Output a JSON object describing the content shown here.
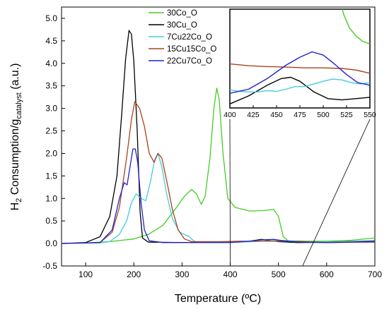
{
  "chart_data": [
    {
      "type": "line",
      "xlabel": "Temperature (ºC)",
      "ylabel_main": "H",
      "ylabel_sub": "2",
      "ylabel_mid": " Consumption/g",
      "ylabel_sub2": "catalyst",
      "ylabel_end": " (a.u.)",
      "xlim": [
        50,
        700
      ],
      "ylim": [
        -0.5,
        5.25
      ],
      "xticks": [
        100,
        200,
        300,
        400,
        500,
        600,
        700
      ],
      "yticks": [
        -0.5,
        0.0,
        0.5,
        1.0,
        1.5,
        2.0,
        2.5,
        3.0,
        3.5,
        4.0,
        4.5,
        5.0
      ],
      "ytick_labels": [
        "-0.5",
        "0.0",
        "0.5",
        "1.0",
        "1.5",
        "2.0",
        "2.5",
        "3.0",
        "3.5",
        "4.0",
        "4.5",
        "5.0"
      ],
      "legend_position": "top-right",
      "series": [
        {
          "name": "30Co_O",
          "color": "#44cc22",
          "points": [
            [
              50,
              0
            ],
            [
              100,
              0.01
            ],
            [
              150,
              0.04
            ],
            [
              200,
              0.1
            ],
            [
              230,
              0.2
            ],
            [
              260,
              0.4
            ],
            [
              285,
              0.75
            ],
            [
              305,
              1.05
            ],
            [
              320,
              1.2
            ],
            [
              330,
              1.1
            ],
            [
              340,
              0.87
            ],
            [
              348,
              1.05
            ],
            [
              358,
              1.9
            ],
            [
              366,
              3.0
            ],
            [
              372,
              3.45
            ],
            [
              377,
              3.2
            ],
            [
              385,
              2.0
            ],
            [
              395,
              1.0
            ],
            [
              410,
              0.8
            ],
            [
              440,
              0.72
            ],
            [
              470,
              0.73
            ],
            [
              490,
              0.76
            ],
            [
              500,
              0.6
            ],
            [
              510,
              0.15
            ],
            [
              520,
              0.06
            ],
            [
              560,
              0.05
            ],
            [
              600,
              0.05
            ],
            [
              650,
              0.07
            ],
            [
              700,
              0.12
            ]
          ]
        },
        {
          "name": "30Cu_O",
          "color": "#000000",
          "points": [
            [
              50,
              0
            ],
            [
              100,
              0.02
            ],
            [
              130,
              0.15
            ],
            [
              150,
              0.6
            ],
            [
              165,
              1.5
            ],
            [
              175,
              2.9
            ],
            [
              183,
              4.1
            ],
            [
              190,
              4.73
            ],
            [
              195,
              4.65
            ],
            [
              200,
              4.05
            ],
            [
              207,
              2.5
            ],
            [
              213,
              0.7
            ],
            [
              218,
              0.12
            ],
            [
              230,
              0.03
            ],
            [
              300,
              0.02
            ],
            [
              380,
              0.02
            ],
            [
              440,
              0.05
            ],
            [
              465,
              0.09
            ],
            [
              500,
              0.04
            ],
            [
              540,
              0.02
            ],
            [
              600,
              0.03
            ],
            [
              700,
              0.06
            ]
          ]
        },
        {
          "name": "7Cu22Co_O",
          "color": "#44ccdd",
          "points": [
            [
              50,
              0
            ],
            [
              130,
              0.01
            ],
            [
              150,
              0.04
            ],
            [
              170,
              0.2
            ],
            [
              185,
              0.5
            ],
            [
              195,
              0.9
            ],
            [
              205,
              1.1
            ],
            [
              215,
              1.0
            ],
            [
              225,
              0.95
            ],
            [
              235,
              1.4
            ],
            [
              243,
              1.85
            ],
            [
              250,
              2.0
            ],
            [
              258,
              1.7
            ],
            [
              268,
              1.1
            ],
            [
              280,
              0.55
            ],
            [
              295,
              0.25
            ],
            [
              315,
              0.15
            ],
            [
              325,
              0.05
            ],
            [
              340,
              0.02
            ],
            [
              420,
              0.03
            ],
            [
              450,
              0.04
            ],
            [
              480,
              0.06
            ],
            [
              510,
              0.07
            ],
            [
              540,
              0.04
            ],
            [
              600,
              0.03
            ],
            [
              700,
              0.05
            ]
          ]
        },
        {
          "name": "15Cu15Co_O",
          "color": "#a8431b",
          "points": [
            [
              50,
              0
            ],
            [
              130,
              0.02
            ],
            [
              155,
              0.25
            ],
            [
              170,
              0.8
            ],
            [
              185,
              1.9
            ],
            [
              195,
              2.75
            ],
            [
              202,
              3.15
            ],
            [
              212,
              3.0
            ],
            [
              222,
              2.6
            ],
            [
              232,
              2.0
            ],
            [
              242,
              1.8
            ],
            [
              250,
              2.0
            ],
            [
              258,
              1.9
            ],
            [
              268,
              1.4
            ],
            [
              280,
              0.75
            ],
            [
              292,
              0.3
            ],
            [
              305,
              0.1
            ],
            [
              320,
              0.04
            ],
            [
              380,
              0.04
            ],
            [
              420,
              0.05
            ],
            [
              450,
              0.05
            ],
            [
              490,
              0.05
            ],
            [
              550,
              0.04
            ],
            [
              600,
              0.02
            ],
            [
              700,
              0.03
            ]
          ]
        },
        {
          "name": "22Cu7Co_O",
          "color": "#2222cc",
          "points": [
            [
              50,
              0
            ],
            [
              130,
              0.02
            ],
            [
              155,
              0.3
            ],
            [
              170,
              1.0
            ],
            [
              180,
              1.35
            ],
            [
              186,
              1.3
            ],
            [
              192,
              1.7
            ],
            [
              198,
              2.1
            ],
            [
              203,
              2.1
            ],
            [
              208,
              1.8
            ],
            [
              215,
              0.9
            ],
            [
              222,
              0.3
            ],
            [
              232,
              0.06
            ],
            [
              260,
              0.02
            ],
            [
              400,
              0.02
            ],
            [
              440,
              0.05
            ],
            [
              465,
              0.08
            ],
            [
              490,
              0.09
            ],
            [
              510,
              0.06
            ],
            [
              540,
              0.03
            ],
            [
              600,
              0.02
            ],
            [
              700,
              0.04
            ]
          ]
        }
      ]
    },
    {
      "type": "line",
      "role": "inset",
      "xlim": [
        400,
        550
      ],
      "ylim": [
        -0.05,
        0.32
      ],
      "xticks": [
        400,
        425,
        450,
        475,
        500,
        525,
        550
      ],
      "series": [
        {
          "name": "30Co_O",
          "color": "#44cc22",
          "points": [
            [
              518,
              0.35
            ],
            [
              522,
              0.3
            ],
            [
              528,
              0.25
            ],
            [
              535,
              0.22
            ],
            [
              542,
              0.2
            ],
            [
              550,
              0.19
            ]
          ]
        },
        {
          "name": "30Cu_O",
          "color": "#000000",
          "points": [
            [
              400,
              -0.035
            ],
            [
              420,
              -0.005
            ],
            [
              440,
              0.035
            ],
            [
              455,
              0.06
            ],
            [
              465,
              0.065
            ],
            [
              475,
              0.05
            ],
            [
              490,
              0.01
            ],
            [
              505,
              -0.015
            ],
            [
              520,
              -0.02
            ],
            [
              535,
              -0.015
            ],
            [
              550,
              -0.01
            ]
          ]
        },
        {
          "name": "7Cu22Co_O",
          "color": "#44ccdd",
          "points": [
            [
              400,
              0.018
            ],
            [
              410,
              0.012
            ],
            [
              420,
              0.01
            ],
            [
              430,
              0.01
            ],
            [
              440,
              0.015
            ],
            [
              450,
              0.012
            ],
            [
              460,
              0.02
            ],
            [
              470,
              0.03
            ],
            [
              480,
              0.03
            ],
            [
              490,
              0.04
            ],
            [
              500,
              0.05
            ],
            [
              510,
              0.058
            ],
            [
              520,
              0.055
            ],
            [
              530,
              0.045
            ],
            [
              540,
              0.04
            ],
            [
              550,
              0.045
            ]
          ]
        },
        {
          "name": "15Cu15Co_O",
          "color": "#a8431b",
          "points": [
            [
              400,
              0.115
            ],
            [
              420,
              0.108
            ],
            [
              440,
              0.105
            ],
            [
              460,
              0.103
            ],
            [
              480,
              0.1
            ],
            [
              500,
              0.1
            ],
            [
              520,
              0.098
            ],
            [
              535,
              0.092
            ],
            [
              550,
              0.08
            ]
          ]
        },
        {
          "name": "22Cu7Co_O",
          "color": "#2222cc",
          "points": [
            [
              400,
              0.005
            ],
            [
              420,
              0.02
            ],
            [
              440,
              0.06
            ],
            [
              460,
              0.11
            ],
            [
              475,
              0.14
            ],
            [
              488,
              0.16
            ],
            [
              500,
              0.148
            ],
            [
              512,
              0.115
            ],
            [
              525,
              0.075
            ],
            [
              537,
              0.045
            ],
            [
              550,
              0.035
            ]
          ]
        }
      ]
    }
  ]
}
